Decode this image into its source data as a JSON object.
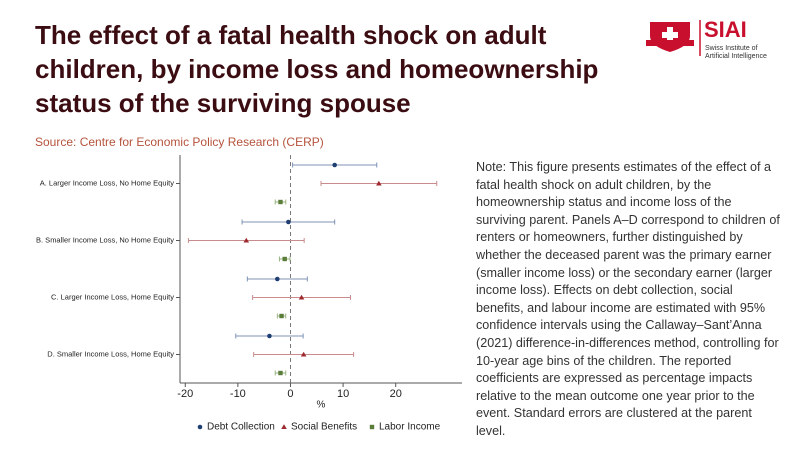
{
  "header": {
    "title": [
      "The effect of a fatal health shock on adult",
      "children, by income loss and homeownership",
      "status of the surviving spouse"
    ],
    "source": "Source: Centre for Economic Policy Research (CERP)"
  },
  "logo": {
    "name": "SIAI",
    "tagline": [
      "Swiss Institute of",
      "Artificial Intelligence"
    ]
  },
  "note": "Note: This figure presents estimates of the effect of a fatal health shock on adult children, by the homeownership status and income loss of the surviving parent. Panels A–D correspond to children of renters or homeowners, further distinguished by whether the deceased parent was the primary earner (smaller income loss) or the secondary earner (larger income loss). Effects on debt collection, social benefits, and labour income are estimated with 95% confidence intervals using the Callaway–Sant’Anna (2021) difference-in-differences method, controlling for 10-year age bins of the children. The reported coefficients are expressed as percentage impacts relative to the mean outcome one year prior to the event. Standard errors are clustered at the parent level.",
  "chart_data": {
    "type": "coefplot",
    "x_label": "%",
    "categories": [
      "A. Larger Income Loss, No Home Equity",
      "B. Smaller Income Loss, No Home Equity",
      "C. Larger Income Loss, Home Equity",
      "D. Smaller Income Loss, Home Equity"
    ],
    "series": [
      {
        "name": "Debt Collection",
        "color": "#1f3f73",
        "bar_color": "#7f93b5",
        "marker": "circle",
        "values": [
          8.4,
          -0.4,
          -2.5,
          -4.0
        ],
        "errors": [
          8.0,
          8.8,
          5.7,
          6.4
        ]
      },
      {
        "name": "Social Benefits",
        "color": "#9e2a2f",
        "bar_color": "#c98c8c",
        "marker": "triangle",
        "values": [
          16.8,
          -8.4,
          2.1,
          2.5
        ],
        "errors": [
          11.0,
          11.0,
          9.3,
          9.5
        ]
      },
      {
        "name": "Labor Income",
        "color": "#5b7d3a",
        "bar_color": "#9bb584",
        "marker": "square",
        "values": [
          -1.9,
          -1.1,
          -1.7,
          -1.9
        ],
        "errors": [
          1.0,
          1.0,
          0.8,
          1.0
        ]
      }
    ],
    "xlim": [
      -21,
      32.6
    ],
    "xticks": [
      -20,
      -10,
      0,
      10,
      20
    ],
    "reference_line": 0
  }
}
